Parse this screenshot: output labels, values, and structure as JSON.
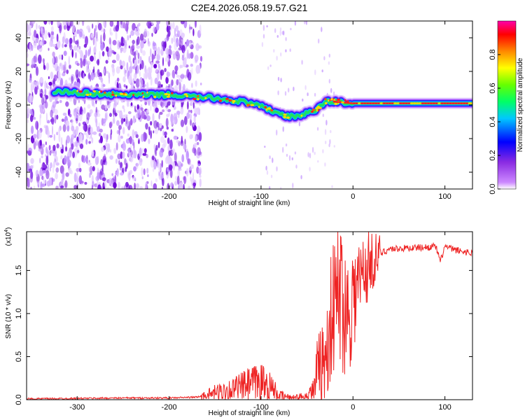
{
  "title": "C2E4.2026.058.19.57.G21",
  "chart_data": [
    {
      "type": "heatmap",
      "title": "C2E4.2026.058.19.57.G21",
      "xlabel": "Height of straight line (km)",
      "ylabel": "Frequency (Hz)",
      "xlim": [
        -355,
        130
      ],
      "ylim": [
        -50,
        50
      ],
      "xticks": [
        "-300",
        "-200",
        "-100",
        "0",
        "100"
      ],
      "yticks": [
        "40",
        "20",
        "0",
        "-20",
        "-40"
      ],
      "colorbar": {
        "label": "Normalized spectral amplitude",
        "range": [
          0,
          1
        ],
        "ticks": [
          "0.0",
          "0.2",
          "0.4",
          "0.6",
          "0.8"
        ],
        "colors": [
          "#ffffff",
          "#9b30ff",
          "#0000ff",
          "#00ffff",
          "#00ff00",
          "#ffff00",
          "#ff0000",
          "#ff00aa"
        ]
      },
      "signal_track": {
        "x": [
          -325,
          -290,
          -250,
          -200,
          -175,
          -150,
          -120,
          -100,
          -85,
          -70,
          -55,
          -40,
          -30,
          -20,
          0,
          40,
          80,
          90,
          130
        ],
        "frequency": [
          8,
          7,
          6,
          6,
          5,
          4,
          2,
          -1,
          -4,
          -7,
          -6,
          -3,
          2,
          2,
          1,
          1,
          1,
          1,
          1
        ]
      },
      "noise_region_x": [
        -355,
        -165
      ],
      "grid": false
    },
    {
      "type": "line",
      "xlabel": "Height of straight line (km)",
      "ylabel": "SNR (10 * v/v)",
      "y_multiplier": "(x10",
      "y_multiplier_exp": "4",
      "y_multiplier_close": ")",
      "xlim": [
        -355,
        130
      ],
      "ylim": [
        0,
        1.95
      ],
      "xticks": [
        "-300",
        "-200",
        "-100",
        "0",
        "100"
      ],
      "yticks": [
        "0.0",
        "0.5",
        "1.0",
        "1.5"
      ],
      "series": [
        {
          "color": "#ee2222",
          "x": [
            -355,
            -300,
            -250,
            -200,
            -170,
            -160,
            -150,
            -140,
            -130,
            -120,
            -110,
            -100,
            -90,
            -80,
            -70,
            -60,
            -50,
            -40,
            -35,
            -30,
            -25,
            -20,
            -15,
            -10,
            -5,
            0,
            5,
            10,
            20,
            30,
            40,
            60,
            80,
            90,
            95,
            100,
            110,
            120,
            130
          ],
          "y": [
            0.01,
            0.015,
            0.02,
            0.02,
            0.03,
            0.05,
            0.08,
            0.1,
            0.12,
            0.15,
            0.18,
            0.2,
            0.15,
            0.05,
            0.03,
            0.03,
            0.05,
            0.15,
            0.3,
            0.55,
            0.9,
            1.1,
            1.3,
            1.1,
            1.0,
            1.2,
            1.3,
            1.45,
            1.6,
            1.7,
            1.75,
            1.76,
            1.77,
            1.78,
            1.6,
            1.78,
            1.74,
            1.72,
            1.7
          ]
        }
      ],
      "grid": false
    }
  ]
}
